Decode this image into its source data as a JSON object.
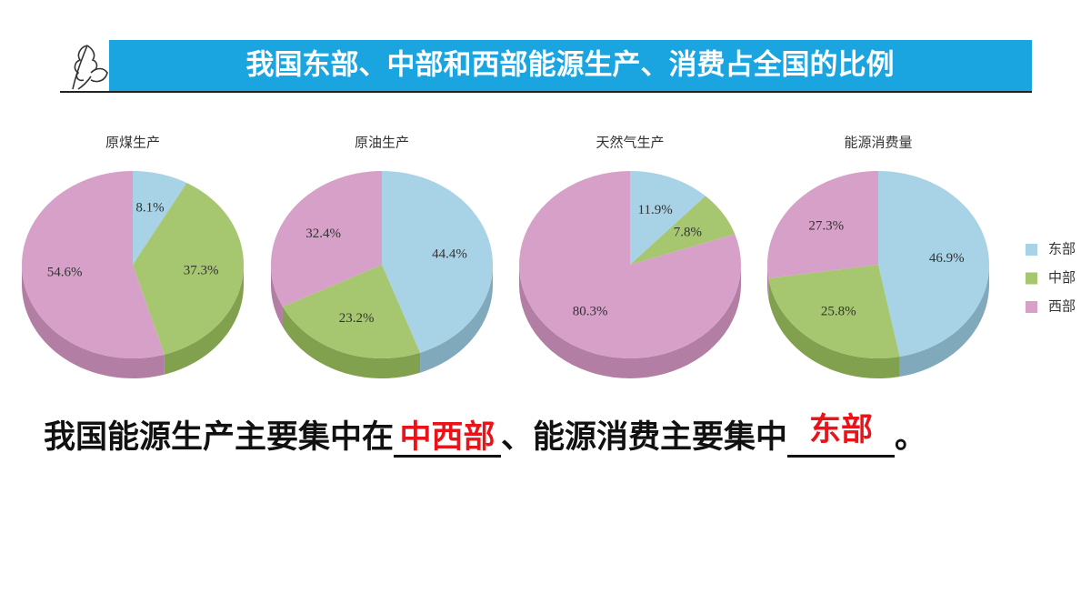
{
  "title": "我国东部、中部和西部能源生产、消费占全国的比例",
  "chart_data": [
    {
      "type": "pie",
      "title": "原煤生产",
      "categories": [
        "东部",
        "中部",
        "西部"
      ],
      "values": [
        8.1,
        37.3,
        54.6
      ],
      "value_labels": [
        "8.1%",
        "37.3%",
        "54.6%"
      ],
      "colors": [
        "#a8d2e6",
        "#a6c770",
        "#d6a0c8"
      ]
    },
    {
      "type": "pie",
      "title": "原油生产",
      "categories": [
        "东部",
        "中部",
        "西部"
      ],
      "values": [
        44.4,
        23.2,
        32.4
      ],
      "value_labels": [
        "44.4%",
        "23.2%",
        "32.4%"
      ],
      "colors": [
        "#a8d2e6",
        "#a6c770",
        "#d6a0c8"
      ]
    },
    {
      "type": "pie",
      "title": "天然气生产",
      "categories": [
        "东部",
        "中部",
        "西部"
      ],
      "values": [
        11.9,
        7.8,
        80.3
      ],
      "value_labels": [
        "11.9%",
        "7.8%",
        "80.3%"
      ],
      "colors": [
        "#a8d2e6",
        "#a6c770",
        "#d6a0c8"
      ]
    },
    {
      "type": "pie",
      "title": "能源消费量",
      "categories": [
        "东部",
        "中部",
        "西部"
      ],
      "values": [
        46.9,
        25.8,
        27.3
      ],
      "value_labels": [
        "46.9%",
        "25.8%",
        "27.3%"
      ],
      "colors": [
        "#a8d2e6",
        "#a6c770",
        "#d6a0c8"
      ]
    }
  ],
  "sentence": {
    "parts": [
      "我国能源生产主要集中在",
      "、能源消费主要集中",
      "。"
    ],
    "answers": [
      "中西部",
      "东部"
    ]
  }
}
